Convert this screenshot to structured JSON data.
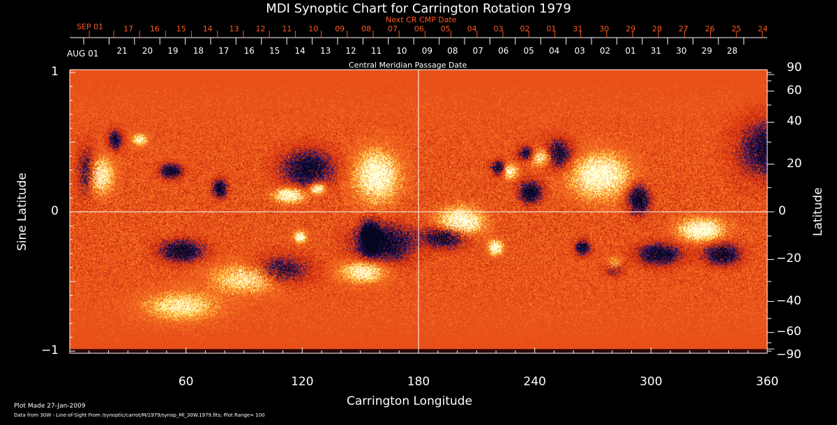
{
  "chart_data": {
    "type": "heatmap",
    "title": "MDI Synoptic Chart for Carrington Rotation 1979",
    "xlabel": "Carrington Longitude",
    "ylabel_left": "Sine Latitude",
    "ylabel_right": "Latitude",
    "xlim": [
      0,
      360
    ],
    "ylim": [
      -1,
      1
    ],
    "x_ticks": [
      "60",
      "120",
      "180",
      "240",
      "300",
      "360"
    ],
    "y_ticks_left": [
      "1",
      "0",
      "−1"
    ],
    "y_ticks_right": [
      "90",
      "60",
      "40",
      "20",
      "0",
      "−20",
      "−40",
      "−60",
      "−90"
    ],
    "top_axis": {
      "label_bottom": "Central Meridian Passage Date",
      "label_top": "Next CR CMP Date",
      "month_bottom": "AUG 01",
      "month_top": "SEP 01",
      "dates_bottom": [
        "21",
        "20",
        "19",
        "18",
        "17",
        "16",
        "15",
        "14",
        "13",
        "12",
        "11",
        "10",
        "09",
        "08",
        "07",
        "06",
        "05",
        "04",
        "03",
        "02",
        "01",
        "31",
        "30",
        "29",
        "28"
      ],
      "dates_top": [
        "17",
        "16",
        "15",
        "14",
        "13",
        "12",
        "11",
        "10",
        "09",
        "08",
        "07",
        "06",
        "05",
        "04",
        "03",
        "02",
        "01",
        "31",
        "30",
        "29",
        "28",
        "27",
        "26",
        "25",
        "24"
      ]
    },
    "grid_lines": {
      "longitude": 180,
      "sine_latitude": 0
    },
    "plot_range": 100,
    "colors": {
      "background": "#e8501a",
      "positive": "#ffffff",
      "negative": "#10106a",
      "top_axis_accent": "#ff5a1e"
    }
  },
  "footer": {
    "plot_made": "Plot Made 27-Jan-2009",
    "data_from": "Data from 30W - Line-of-Sight From /synoptic/carrot/M/1979/synop_Ml_30W.1979.fits; Plot Range=  100"
  }
}
